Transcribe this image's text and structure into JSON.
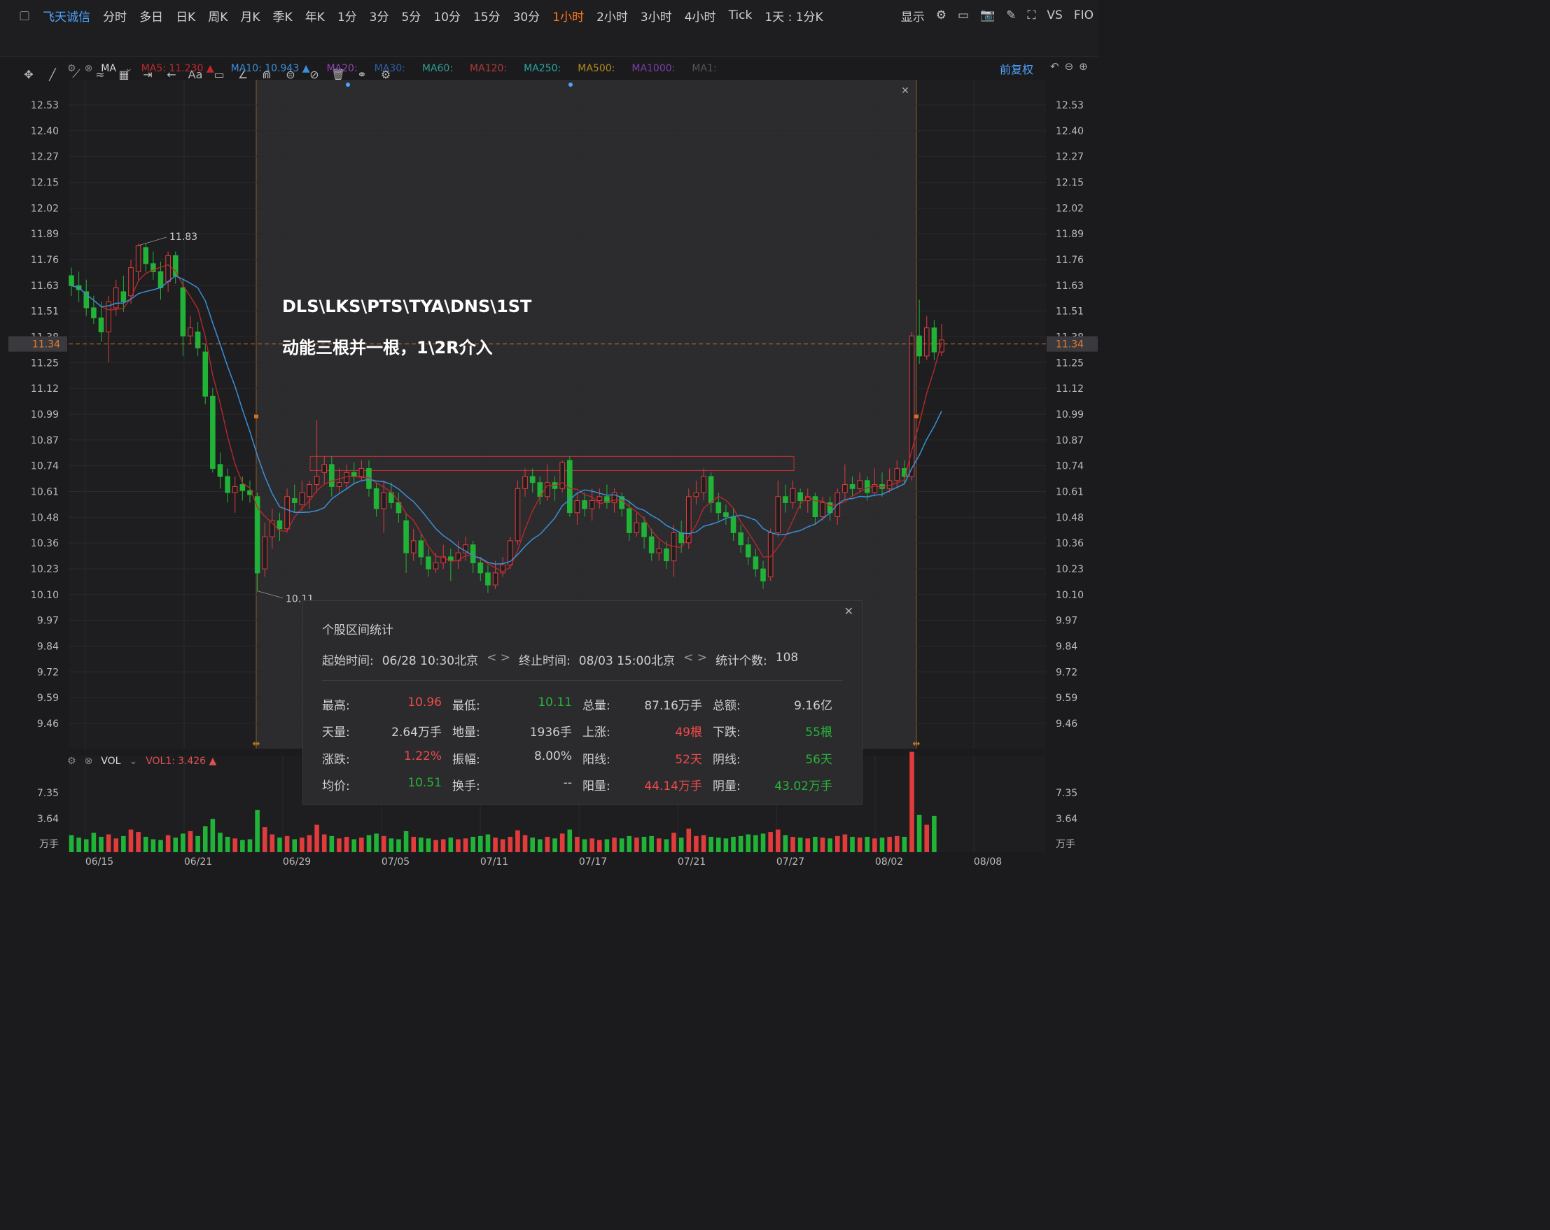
{
  "toolbar": {
    "stock_name": "飞天诚信",
    "periods": [
      "分时",
      "多日",
      "日K",
      "周K",
      "月K",
      "季K",
      "年K",
      "1分",
      "3分",
      "5分",
      "10分",
      "15分",
      "30分",
      "1小时",
      "2小时",
      "3小时",
      "4小时",
      "Tick",
      "1天 : 1分K"
    ],
    "active_period": "1小时",
    "display_label": "显示",
    "vs_label": "VS",
    "fio_label": "FIO"
  },
  "draw_tools": [
    "✥",
    "╱",
    "⟋",
    "≈",
    "▦",
    "⇥",
    "←",
    "Aa",
    "▭",
    "∠",
    "⋒",
    "⊜",
    "⊘",
    "🗑",
    "⚭",
    "⚙"
  ],
  "ma_bar": {
    "label": "MA",
    "items": [
      {
        "text": "MA5:",
        "value": "11.230 ▲",
        "color": "#c0282b"
      },
      {
        "text": "MA10:",
        "value": "10.943 ▲",
        "color": "#3a8fd8"
      },
      {
        "text": "MA20:",
        "value": "",
        "color": "#8e44ad"
      },
      {
        "text": "MA30:",
        "value": "",
        "color": "#2c5fa8"
      },
      {
        "text": "MA60:",
        "value": "",
        "color": "#2e9e8f"
      },
      {
        "text": "MA120:",
        "value": "",
        "color": "#b03a3a"
      },
      {
        "text": "MA250:",
        "value": "",
        "color": "#27a7a0"
      },
      {
        "text": "MA500:",
        "value": "",
        "color": "#b08a20"
      },
      {
        "text": "MA1000:",
        "value": "",
        "color": "#7a3fa8"
      },
      {
        "text": "MA1:",
        "value": "",
        "color": "#555555"
      }
    ],
    "adjust_label": "前复权"
  },
  "annotations": {
    "line1": "DLS\\LKS\\PTS\\TYA\\DNS\\1ST",
    "line2": "动能三根并一根，1\\2R介入"
  },
  "vol_bar": {
    "label": "VOL",
    "vol1_text": "VOL1:",
    "vol1_value": "3.426 ▲"
  },
  "stats_panel": {
    "title": "个股区间统计",
    "start_label": "起始时间:",
    "start_value": "06/28 10:30北京",
    "end_label": "终止时间:",
    "end_value": "08/03 15:00北京",
    "count_label": "统计个数:",
    "count_value": "108",
    "rows": [
      [
        {
          "k": "最高:",
          "v": "10.96",
          "c": "red"
        },
        {
          "k": "最低:",
          "v": "10.11",
          "c": "green"
        },
        {
          "k": "总量:",
          "v": "87.16万手",
          "c": "wht"
        },
        {
          "k": "总额:",
          "v": "9.16亿",
          "c": "wht"
        }
      ],
      [
        {
          "k": "天量:",
          "v": "2.64万手",
          "c": "wht"
        },
        {
          "k": "地量:",
          "v": "1936手",
          "c": "wht"
        },
        {
          "k": "上涨:",
          "v": "49根",
          "c": "red"
        },
        {
          "k": "下跌:",
          "v": "55根",
          "c": "green"
        }
      ],
      [
        {
          "k": "涨跌:",
          "v": "1.22%",
          "c": "red"
        },
        {
          "k": "振幅:",
          "v": "8.00%",
          "c": "wht"
        },
        {
          "k": "阳线:",
          "v": "52天",
          "c": "red"
        },
        {
          "k": "阴线:",
          "v": "56天",
          "c": "green"
        }
      ],
      [
        {
          "k": "均价:",
          "v": "10.51",
          "c": "green"
        },
        {
          "k": "换手:",
          "v": "--",
          "c": "wht"
        },
        {
          "k": "阳量:",
          "v": "44.14万手",
          "c": "red"
        },
        {
          "k": "阴量:",
          "v": "43.02万手",
          "c": "green"
        }
      ]
    ]
  },
  "chart_data": {
    "type": "candlestick",
    "price_ticks": [
      "12.53",
      "12.40",
      "12.27",
      "12.15",
      "12.02",
      "11.89",
      "11.76",
      "11.63",
      "11.51",
      "11.38",
      "11.25",
      "11.12",
      "10.99",
      "10.87",
      "10.74",
      "10.61",
      "10.48",
      "10.36",
      "10.23",
      "10.10",
      "9.97",
      "9.84",
      "9.72",
      "9.59",
      "9.46"
    ],
    "price_range": [
      9.4,
      12.6
    ],
    "current_price": "11.34",
    "high_label": "11.83",
    "low_label": "10.11",
    "x_labels": [
      "06/15",
      "06/21",
      "06/29",
      "07/05",
      "07/11",
      "07/17",
      "07/21",
      "07/27",
      "08/02",
      "08/08"
    ],
    "vol_ticks": [
      "7.35",
      "3.64",
      "万手"
    ],
    "resistance_box": [
      10.71,
      10.78
    ],
    "up_color": "#e03c3c",
    "down_color": "#21b337",
    "ma5_color": "#c0282b",
    "ma10_color": "#3a8fd8",
    "candles": [
      [
        11.68,
        11.63,
        11.72,
        11.58
      ],
      [
        11.63,
        11.61,
        11.7,
        11.55
      ],
      [
        11.6,
        11.52,
        11.66,
        11.48
      ],
      [
        11.52,
        11.47,
        11.58,
        11.44
      ],
      [
        11.47,
        11.4,
        11.55,
        11.35
      ],
      [
        11.4,
        11.55,
        11.58,
        11.25
      ],
      [
        11.52,
        11.62,
        11.66,
        11.48
      ],
      [
        11.6,
        11.55,
        11.68,
        11.5
      ],
      [
        11.58,
        11.72,
        11.76,
        11.54
      ],
      [
        11.7,
        11.83,
        11.84,
        11.66
      ],
      [
        11.82,
        11.74,
        11.84,
        11.7
      ],
      [
        11.74,
        11.7,
        11.8,
        11.66
      ],
      [
        11.7,
        11.62,
        11.75,
        11.56
      ],
      [
        11.65,
        11.78,
        11.8,
        11.6
      ],
      [
        11.78,
        11.68,
        11.8,
        11.64
      ],
      [
        11.62,
        11.38,
        11.66,
        11.28
      ],
      [
        11.38,
        11.42,
        11.48,
        11.34
      ],
      [
        11.4,
        11.32,
        11.45,
        11.28
      ],
      [
        11.3,
        11.08,
        11.34,
        11.04
      ],
      [
        11.08,
        10.72,
        11.12,
        10.7
      ],
      [
        10.74,
        10.68,
        10.8,
        10.62
      ],
      [
        10.68,
        10.6,
        10.72,
        10.55
      ],
      [
        10.6,
        10.63,
        10.68,
        10.5
      ],
      [
        10.64,
        10.61,
        10.68,
        10.56
      ],
      [
        10.61,
        10.59,
        10.66,
        10.55
      ],
      [
        10.58,
        10.2,
        10.6,
        10.11
      ],
      [
        10.22,
        10.38,
        10.45,
        10.18
      ],
      [
        10.38,
        10.46,
        10.52,
        10.32
      ],
      [
        10.46,
        10.42,
        10.5,
        10.36
      ],
      [
        10.42,
        10.58,
        10.62,
        10.4
      ],
      [
        10.57,
        10.55,
        10.64,
        10.5
      ],
      [
        10.54,
        10.6,
        10.66,
        10.51
      ],
      [
        10.58,
        10.64,
        10.66,
        10.52
      ],
      [
        10.64,
        10.68,
        10.96,
        10.6
      ],
      [
        10.7,
        10.74,
        10.78,
        10.64
      ],
      [
        10.74,
        10.63,
        10.78,
        10.58
      ],
      [
        10.63,
        10.65,
        10.72,
        10.6
      ],
      [
        10.65,
        10.7,
        10.74,
        10.62
      ],
      [
        10.7,
        10.68,
        10.75,
        10.64
      ],
      [
        10.68,
        10.72,
        10.76,
        10.66
      ],
      [
        10.72,
        10.62,
        10.76,
        10.58
      ],
      [
        10.62,
        10.52,
        10.65,
        10.48
      ],
      [
        10.52,
        10.6,
        10.66,
        10.4
      ],
      [
        10.6,
        10.55,
        10.65,
        10.52
      ],
      [
        10.55,
        10.5,
        10.6,
        10.45
      ],
      [
        10.46,
        10.3,
        10.5,
        10.2
      ],
      [
        10.3,
        10.36,
        10.42,
        10.26
      ],
      [
        10.36,
        10.28,
        10.4,
        10.24
      ],
      [
        10.28,
        10.22,
        10.32,
        10.18
      ],
      [
        10.22,
        10.25,
        10.3,
        10.2
      ],
      [
        10.25,
        10.28,
        10.34,
        10.22
      ],
      [
        10.28,
        10.26,
        10.32,
        10.16
      ],
      [
        10.26,
        10.3,
        10.36,
        10.22
      ],
      [
        10.3,
        10.34,
        10.38,
        10.26
      ],
      [
        10.34,
        10.25,
        10.36,
        10.2
      ],
      [
        10.25,
        10.2,
        10.28,
        10.16
      ],
      [
        10.2,
        10.14,
        10.24,
        10.1
      ],
      [
        10.14,
        10.2,
        10.26,
        10.12
      ],
      [
        10.2,
        10.24,
        10.28,
        10.18
      ],
      [
        10.24,
        10.36,
        10.38,
        10.22
      ],
      [
        10.36,
        10.62,
        10.66,
        10.34
      ],
      [
        10.62,
        10.68,
        10.72,
        10.58
      ],
      [
        10.68,
        10.65,
        10.72,
        10.6
      ],
      [
        10.65,
        10.58,
        10.68,
        10.54
      ],
      [
        10.58,
        10.65,
        10.74,
        10.56
      ],
      [
        10.65,
        10.62,
        10.68,
        10.56
      ],
      [
        10.62,
        10.75,
        10.76,
        10.6
      ],
      [
        10.76,
        10.5,
        10.78,
        10.48
      ],
      [
        10.5,
        10.56,
        10.6,
        10.44
      ],
      [
        10.56,
        10.52,
        10.6,
        10.48
      ],
      [
        10.52,
        10.56,
        10.62,
        10.46
      ],
      [
        10.56,
        10.58,
        10.62,
        10.52
      ],
      [
        10.58,
        10.55,
        10.64,
        10.52
      ],
      [
        10.55,
        10.6,
        10.62,
        10.5
      ],
      [
        10.58,
        10.52,
        10.6,
        10.48
      ],
      [
        10.52,
        10.4,
        10.56,
        10.36
      ],
      [
        10.4,
        10.45,
        10.5,
        10.38
      ],
      [
        10.45,
        10.38,
        10.48,
        10.32
      ],
      [
        10.38,
        10.3,
        10.42,
        10.26
      ],
      [
        10.3,
        10.32,
        10.36,
        10.26
      ],
      [
        10.32,
        10.26,
        10.36,
        10.22
      ],
      [
        10.26,
        10.4,
        10.44,
        10.18
      ],
      [
        10.4,
        10.35,
        10.46,
        10.3
      ],
      [
        10.35,
        10.58,
        10.62,
        10.32
      ],
      [
        10.58,
        10.6,
        10.66,
        10.54
      ],
      [
        10.6,
        10.68,
        10.72,
        10.56
      ],
      [
        10.68,
        10.55,
        10.7,
        10.5
      ],
      [
        10.55,
        10.5,
        10.6,
        10.46
      ],
      [
        10.5,
        10.48,
        10.54,
        10.44
      ],
      [
        10.48,
        10.4,
        10.52,
        10.36
      ],
      [
        10.4,
        10.34,
        10.44,
        10.3
      ],
      [
        10.34,
        10.28,
        10.38,
        10.24
      ],
      [
        10.28,
        10.22,
        10.32,
        10.18
      ],
      [
        10.22,
        10.16,
        10.26,
        10.12
      ],
      [
        10.18,
        10.4,
        10.42,
        10.16
      ],
      [
        10.4,
        10.58,
        10.66,
        10.38
      ],
      [
        10.58,
        10.55,
        10.64,
        10.5
      ],
      [
        10.55,
        10.62,
        10.66,
        10.52
      ],
      [
        10.6,
        10.56,
        10.62,
        10.52
      ],
      [
        10.56,
        10.58,
        10.62,
        10.5
      ],
      [
        10.58,
        10.48,
        10.6,
        10.44
      ],
      [
        10.48,
        10.55,
        10.58,
        10.46
      ],
      [
        10.55,
        10.5,
        10.58,
        10.46
      ],
      [
        10.48,
        10.6,
        10.62,
        10.44
      ],
      [
        10.6,
        10.64,
        10.74,
        10.56
      ],
      [
        10.64,
        10.62,
        10.68,
        10.58
      ],
      [
        10.62,
        10.66,
        10.7,
        10.6
      ],
      [
        10.66,
        10.6,
        10.68,
        10.56
      ],
      [
        10.6,
        10.64,
        10.72,
        10.58
      ],
      [
        10.64,
        10.62,
        10.7,
        10.58
      ],
      [
        10.62,
        10.66,
        10.72,
        10.6
      ],
      [
        10.66,
        10.72,
        10.76,
        10.62
      ],
      [
        10.72,
        10.68,
        10.76,
        10.64
      ],
      [
        10.68,
        11.38,
        11.4,
        10.66
      ],
      [
        11.38,
        11.28,
        11.56,
        11.24
      ],
      [
        11.28,
        11.42,
        11.48,
        11.26
      ],
      [
        11.42,
        11.3,
        11.46,
        11.26
      ],
      [
        11.3,
        11.36,
        11.44,
        11.28
      ]
    ],
    "volumes": [
      2.1,
      1.8,
      1.6,
      2.4,
      1.9,
      2.2,
      1.7,
      2.0,
      2.8,
      2.5,
      1.9,
      1.6,
      1.5,
      2.1,
      1.8,
      2.3,
      2.6,
      2.0,
      3.2,
      4.1,
      2.4,
      1.9,
      1.7,
      1.5,
      1.6,
      5.2,
      3.1,
      2.2,
      1.8,
      2.0,
      1.6,
      1.8,
      2.1,
      3.4,
      2.2,
      2.0,
      1.7,
      1.9,
      1.6,
      1.8,
      2.1,
      2.3,
      2.0,
      1.7,
      1.6,
      2.6,
      1.9,
      1.8,
      1.7,
      1.5,
      1.6,
      1.8,
      1.6,
      1.7,
      1.9,
      2.0,
      2.2,
      1.8,
      1.6,
      1.9,
      2.7,
      2.1,
      1.8,
      1.6,
      1.9,
      1.7,
      2.3,
      2.8,
      1.9,
      1.6,
      1.7,
      1.5,
      1.6,
      1.8,
      1.7,
      2.0,
      1.8,
      1.9,
      2.0,
      1.7,
      1.6,
      2.4,
      1.8,
      2.9,
      2.0,
      2.1,
      1.9,
      1.8,
      1.7,
      1.9,
      2.0,
      2.2,
      2.1,
      2.3,
      2.5,
      2.8,
      2.1,
      1.9,
      1.8,
      1.7,
      1.9,
      1.8,
      1.7,
      2.0,
      2.2,
      1.9,
      1.8,
      1.9,
      1.7,
      1.8,
      1.9,
      2.0,
      1.9,
      12.4,
      4.6,
      3.4,
      4.5
    ]
  }
}
